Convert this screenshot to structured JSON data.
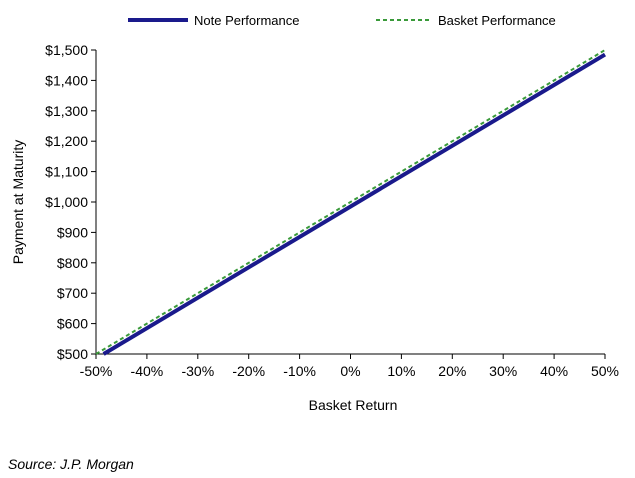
{
  "chart_data": {
    "type": "line",
    "xlabel": "Basket Return",
    "ylabel": "Payment at Maturity",
    "xlim": [
      -50,
      50
    ],
    "ylim": [
      500,
      1500
    ],
    "x_ticks": [
      "-50%",
      "-40%",
      "-30%",
      "-20%",
      "-10%",
      "0%",
      "10%",
      "20%",
      "30%",
      "40%",
      "50%"
    ],
    "y_ticks": [
      "$500",
      "$600",
      "$700",
      "$800",
      "$900",
      "$1,000",
      "$1,100",
      "$1,200",
      "$1,300",
      "$1,400",
      "$1,500"
    ],
    "grid": false,
    "legend_position": "top",
    "series": [
      {
        "name": "Note Performance",
        "color": "#1a1a8c",
        "style": "solid",
        "x": [
          -48.5,
          50
        ],
        "y": [
          500,
          1485
        ]
      },
      {
        "name": "Basket Performance",
        "color": "#3a9a3a",
        "style": "dashed",
        "x": [
          -50,
          50
        ],
        "y": [
          500,
          1500
        ]
      }
    ]
  },
  "source": "Source: J.P. Morgan"
}
